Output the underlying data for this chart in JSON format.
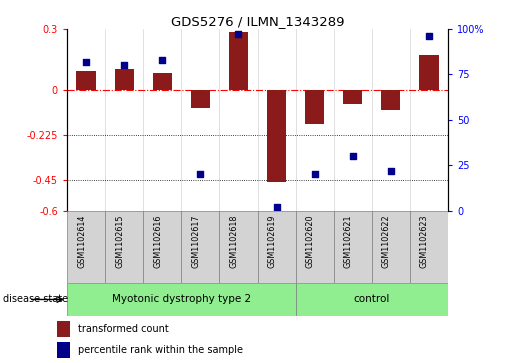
{
  "title": "GDS5276 / ILMN_1343289",
  "samples": [
    "GSM1102614",
    "GSM1102615",
    "GSM1102616",
    "GSM1102617",
    "GSM1102618",
    "GSM1102619",
    "GSM1102620",
    "GSM1102621",
    "GSM1102622",
    "GSM1102623"
  ],
  "red_values": [
    0.09,
    0.1,
    0.08,
    -0.09,
    0.285,
    -0.46,
    -0.17,
    -0.07,
    -0.1,
    0.17
  ],
  "blue_values": [
    82,
    80,
    83,
    20,
    97,
    2,
    20,
    30,
    22,
    96
  ],
  "groups": [
    {
      "label": "Myotonic dystrophy type 2",
      "start": 0,
      "end": 5,
      "color": "#90EE90"
    },
    {
      "label": "control",
      "start": 6,
      "end": 9,
      "color": "#90EE90"
    }
  ],
  "disease_state_label": "disease state",
  "legend_red": "transformed count",
  "legend_blue": "percentile rank within the sample",
  "ylim_left": [
    -0.6,
    0.3
  ],
  "yticks_left": [
    -0.6,
    -0.45,
    -0.225,
    0.0,
    0.3
  ],
  "ytick_labels_left": [
    "-0.6",
    "-0.45",
    "-0.225",
    "0",
    "0.3"
  ],
  "ylim_right": [
    0,
    100
  ],
  "yticks_right": [
    0,
    25,
    50,
    75,
    100
  ],
  "ytick_labels_right": [
    "0",
    "25",
    "50",
    "75",
    "100%"
  ],
  "hline_y": 0.0,
  "dotted_lines": [
    -0.225,
    -0.45
  ],
  "bar_width": 0.5,
  "red_color": "#8B1A1A",
  "blue_color": "#00008B",
  "background_color": "#ffffff",
  "plot_bg_color": "#ffffff",
  "sample_box_color": "#D3D3D3"
}
